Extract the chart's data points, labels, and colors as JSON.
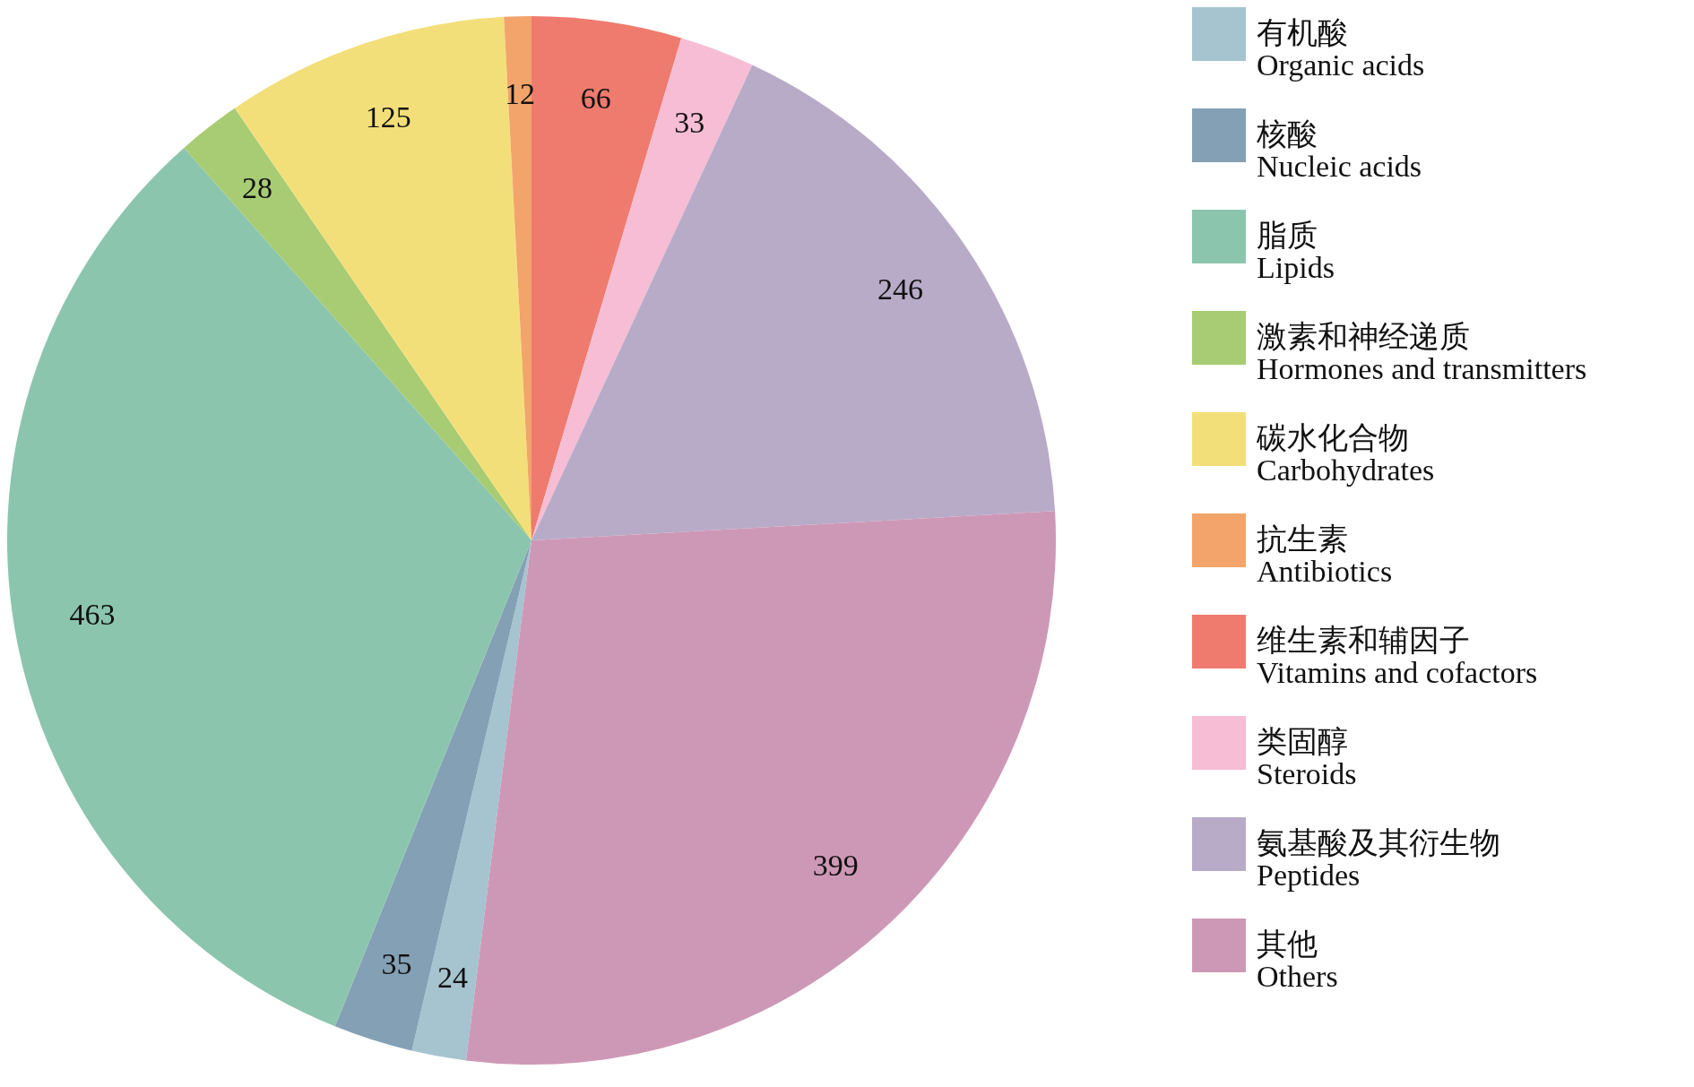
{
  "chart_data": {
    "type": "pie",
    "categories": [
      "有机酸 Organic acids",
      "核酸 Nucleic acids",
      "脂质 Lipids",
      "激素和神经递质 Hormones and transmitters",
      "碳水化合物 Carbohydrates",
      "抗生素 Antibiotics",
      "维生素和辅因子 Vitamins and cofactors",
      "类固醇 Steroids",
      "氨基酸及其衍生物 Peptides",
      "其他 Others"
    ],
    "values": [
      24,
      35,
      463,
      28,
      125,
      12,
      66,
      33,
      246,
      399
    ],
    "colors": [
      "#a5c4cf",
      "#84a0b5",
      "#8cc5ae",
      "#a8cc74",
      "#f3df7a",
      "#f2a46a",
      "#ef7b6e",
      "#f6bdd5",
      "#b8abc8",
      "#cd98b6"
    ],
    "data_labels": true,
    "legend": "right"
  }
}
